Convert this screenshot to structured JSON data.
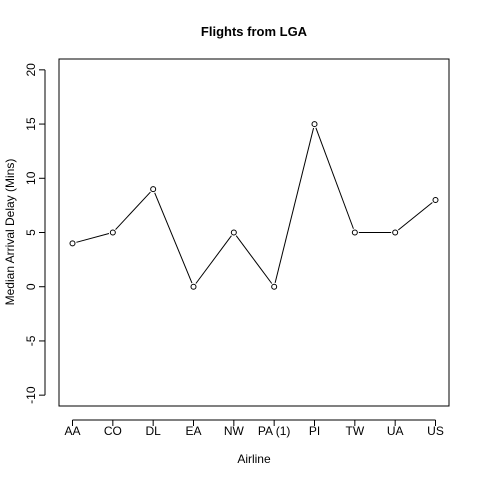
{
  "chart_data": {
    "type": "line",
    "title": "Flights from LGA",
    "xlabel": "Airline",
    "ylabel": "Median Arrival Delay (Mins)",
    "categories": [
      "AA",
      "CO",
      "DL",
      "EA",
      "NW",
      "PA (1)",
      "PI",
      "TW",
      "UA",
      "US"
    ],
    "series": [
      {
        "values": [
          4,
          5,
          9,
          0,
          5,
          0,
          15,
          5,
          5,
          8
        ]
      }
    ],
    "ylim": [
      -11,
      21
    ],
    "yticks": [
      -10,
      -5,
      0,
      5,
      10,
      15,
      20
    ],
    "ytick_labels": [
      "-10",
      "-5",
      "0",
      "5",
      "10",
      "15",
      "20"
    ],
    "grid": false,
    "legend": "none",
    "markers": "open-circle",
    "colors": {
      "line": "#000000",
      "marker": "#000000",
      "background": "#ffffff"
    }
  }
}
